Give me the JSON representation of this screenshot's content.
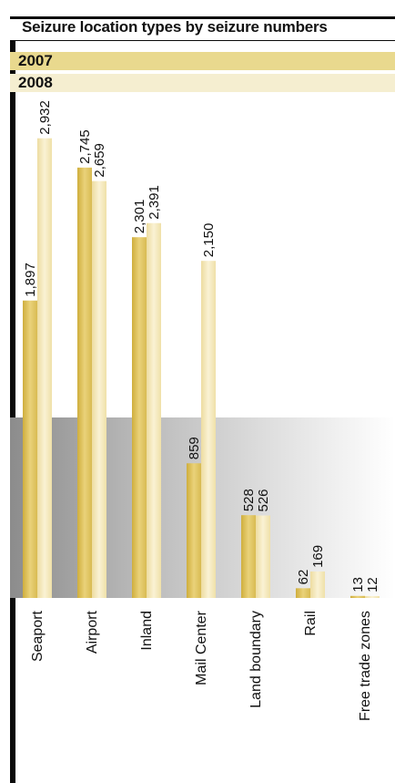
{
  "title": "Seizure location types by seizure numbers",
  "legend": [
    {
      "label": "2007",
      "color": "#e9d98e"
    },
    {
      "label": "2008",
      "color": "#f5eed0"
    }
  ],
  "chart_data": {
    "type": "bar",
    "title": "Seizure location types by seizure numbers",
    "categories": [
      "Seaport",
      "Airport",
      "Inland",
      "Mail Center",
      "Land boundary",
      "Rail",
      "Free trade zones"
    ],
    "series": [
      {
        "name": "2007",
        "values": [
          1897,
          2745,
          2301,
          859,
          528,
          62,
          13
        ],
        "labels": [
          "1,897",
          "2,745",
          "2,301",
          "859",
          "528",
          "62",
          "13"
        ]
      },
      {
        "name": "2008",
        "values": [
          2932,
          2659,
          2391,
          2150,
          526,
          169,
          12
        ],
        "labels": [
          "2,932",
          "2,659",
          "2,391",
          "2,150",
          "526",
          "169",
          "12"
        ]
      }
    ],
    "colors": {
      "2007": "#e2c860",
      "2008": "#f3e6b3"
    },
    "ylim": [
      0,
      3000
    ],
    "grid": false,
    "legend_position": "top-left"
  }
}
